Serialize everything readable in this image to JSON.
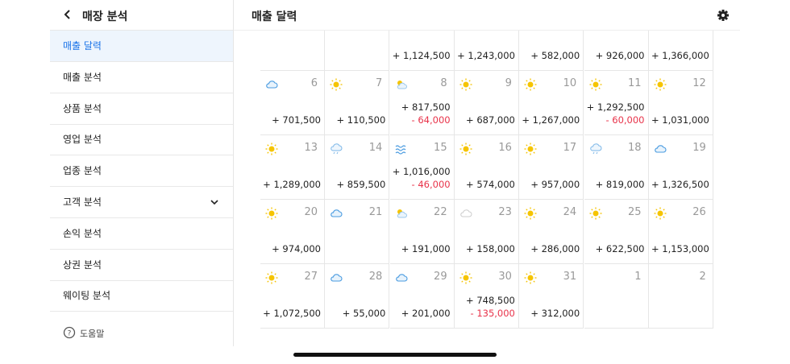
{
  "sidebar": {
    "title": "매장 분석",
    "items": [
      "매출 달력",
      "매출 분석",
      "상품 분석",
      "영업 분석",
      "업종 분석",
      "고객 분석",
      "손익 분석",
      "상권 분석",
      "웨이팅 분석"
    ],
    "help": "도움말"
  },
  "main": {
    "title": "매출 달력"
  },
  "calendar": {
    "weeks": [
      [
        null,
        null,
        {
          "sales": "+ 1,124,500"
        },
        {
          "sales": "+ 1,243,000"
        },
        {
          "sales": "+ 582,000"
        },
        {
          "sales": "+ 926,000"
        },
        {
          "sales": "+ 1,366,000"
        }
      ],
      [
        {
          "day": 6,
          "sales": "+ 701,500"
        },
        {
          "day": 7,
          "sales": "+ 110,500"
        },
        {
          "day": 8,
          "sales": "+ 817,500",
          "refund": "- 64,000"
        },
        {
          "day": 9,
          "sales": "+ 687,000"
        },
        {
          "day": 10,
          "sales": "+ 1,267,000"
        },
        {
          "day": 11,
          "sales": "+ 1,292,500",
          "refund": "- 60,000"
        },
        {
          "day": 12,
          "sales": "+ 1,031,000"
        }
      ],
      [
        {
          "day": 13,
          "sales": "+ 1,289,000"
        },
        {
          "day": 14,
          "sales": "+ 859,500"
        },
        {
          "day": 15,
          "sales": "+ 1,016,000",
          "refund": "- 46,000"
        },
        {
          "day": 16,
          "sales": "+ 574,000"
        },
        {
          "day": 17,
          "sales": "+ 957,000"
        },
        {
          "day": 18,
          "sales": "+ 819,000"
        },
        {
          "day": 19,
          "sales": "+ 1,326,500"
        }
      ],
      [
        {
          "day": 20,
          "sales": "+ 974,000"
        },
        {
          "day": 21
        },
        {
          "day": 22,
          "sales": "+ 191,000"
        },
        {
          "day": 23,
          "sales": "+ 158,000"
        },
        {
          "day": 24,
          "sales": "+ 286,000"
        },
        {
          "day": 25,
          "sales": "+ 622,500"
        },
        {
          "day": 26,
          "sales": "+ 1,153,000"
        }
      ],
      [
        {
          "day": 27,
          "sales": "+ 1,072,500"
        },
        {
          "day": 28,
          "sales": "+ 55,000"
        },
        {
          "day": 29,
          "sales": "+ 201,000"
        },
        {
          "day": 30,
          "sales": "+ 748,500",
          "refund": "- 135,000"
        },
        {
          "day": 31,
          "sales": "+ 312,000"
        },
        {
          "day": 1
        },
        {
          "day": 2
        }
      ]
    ]
  }
}
